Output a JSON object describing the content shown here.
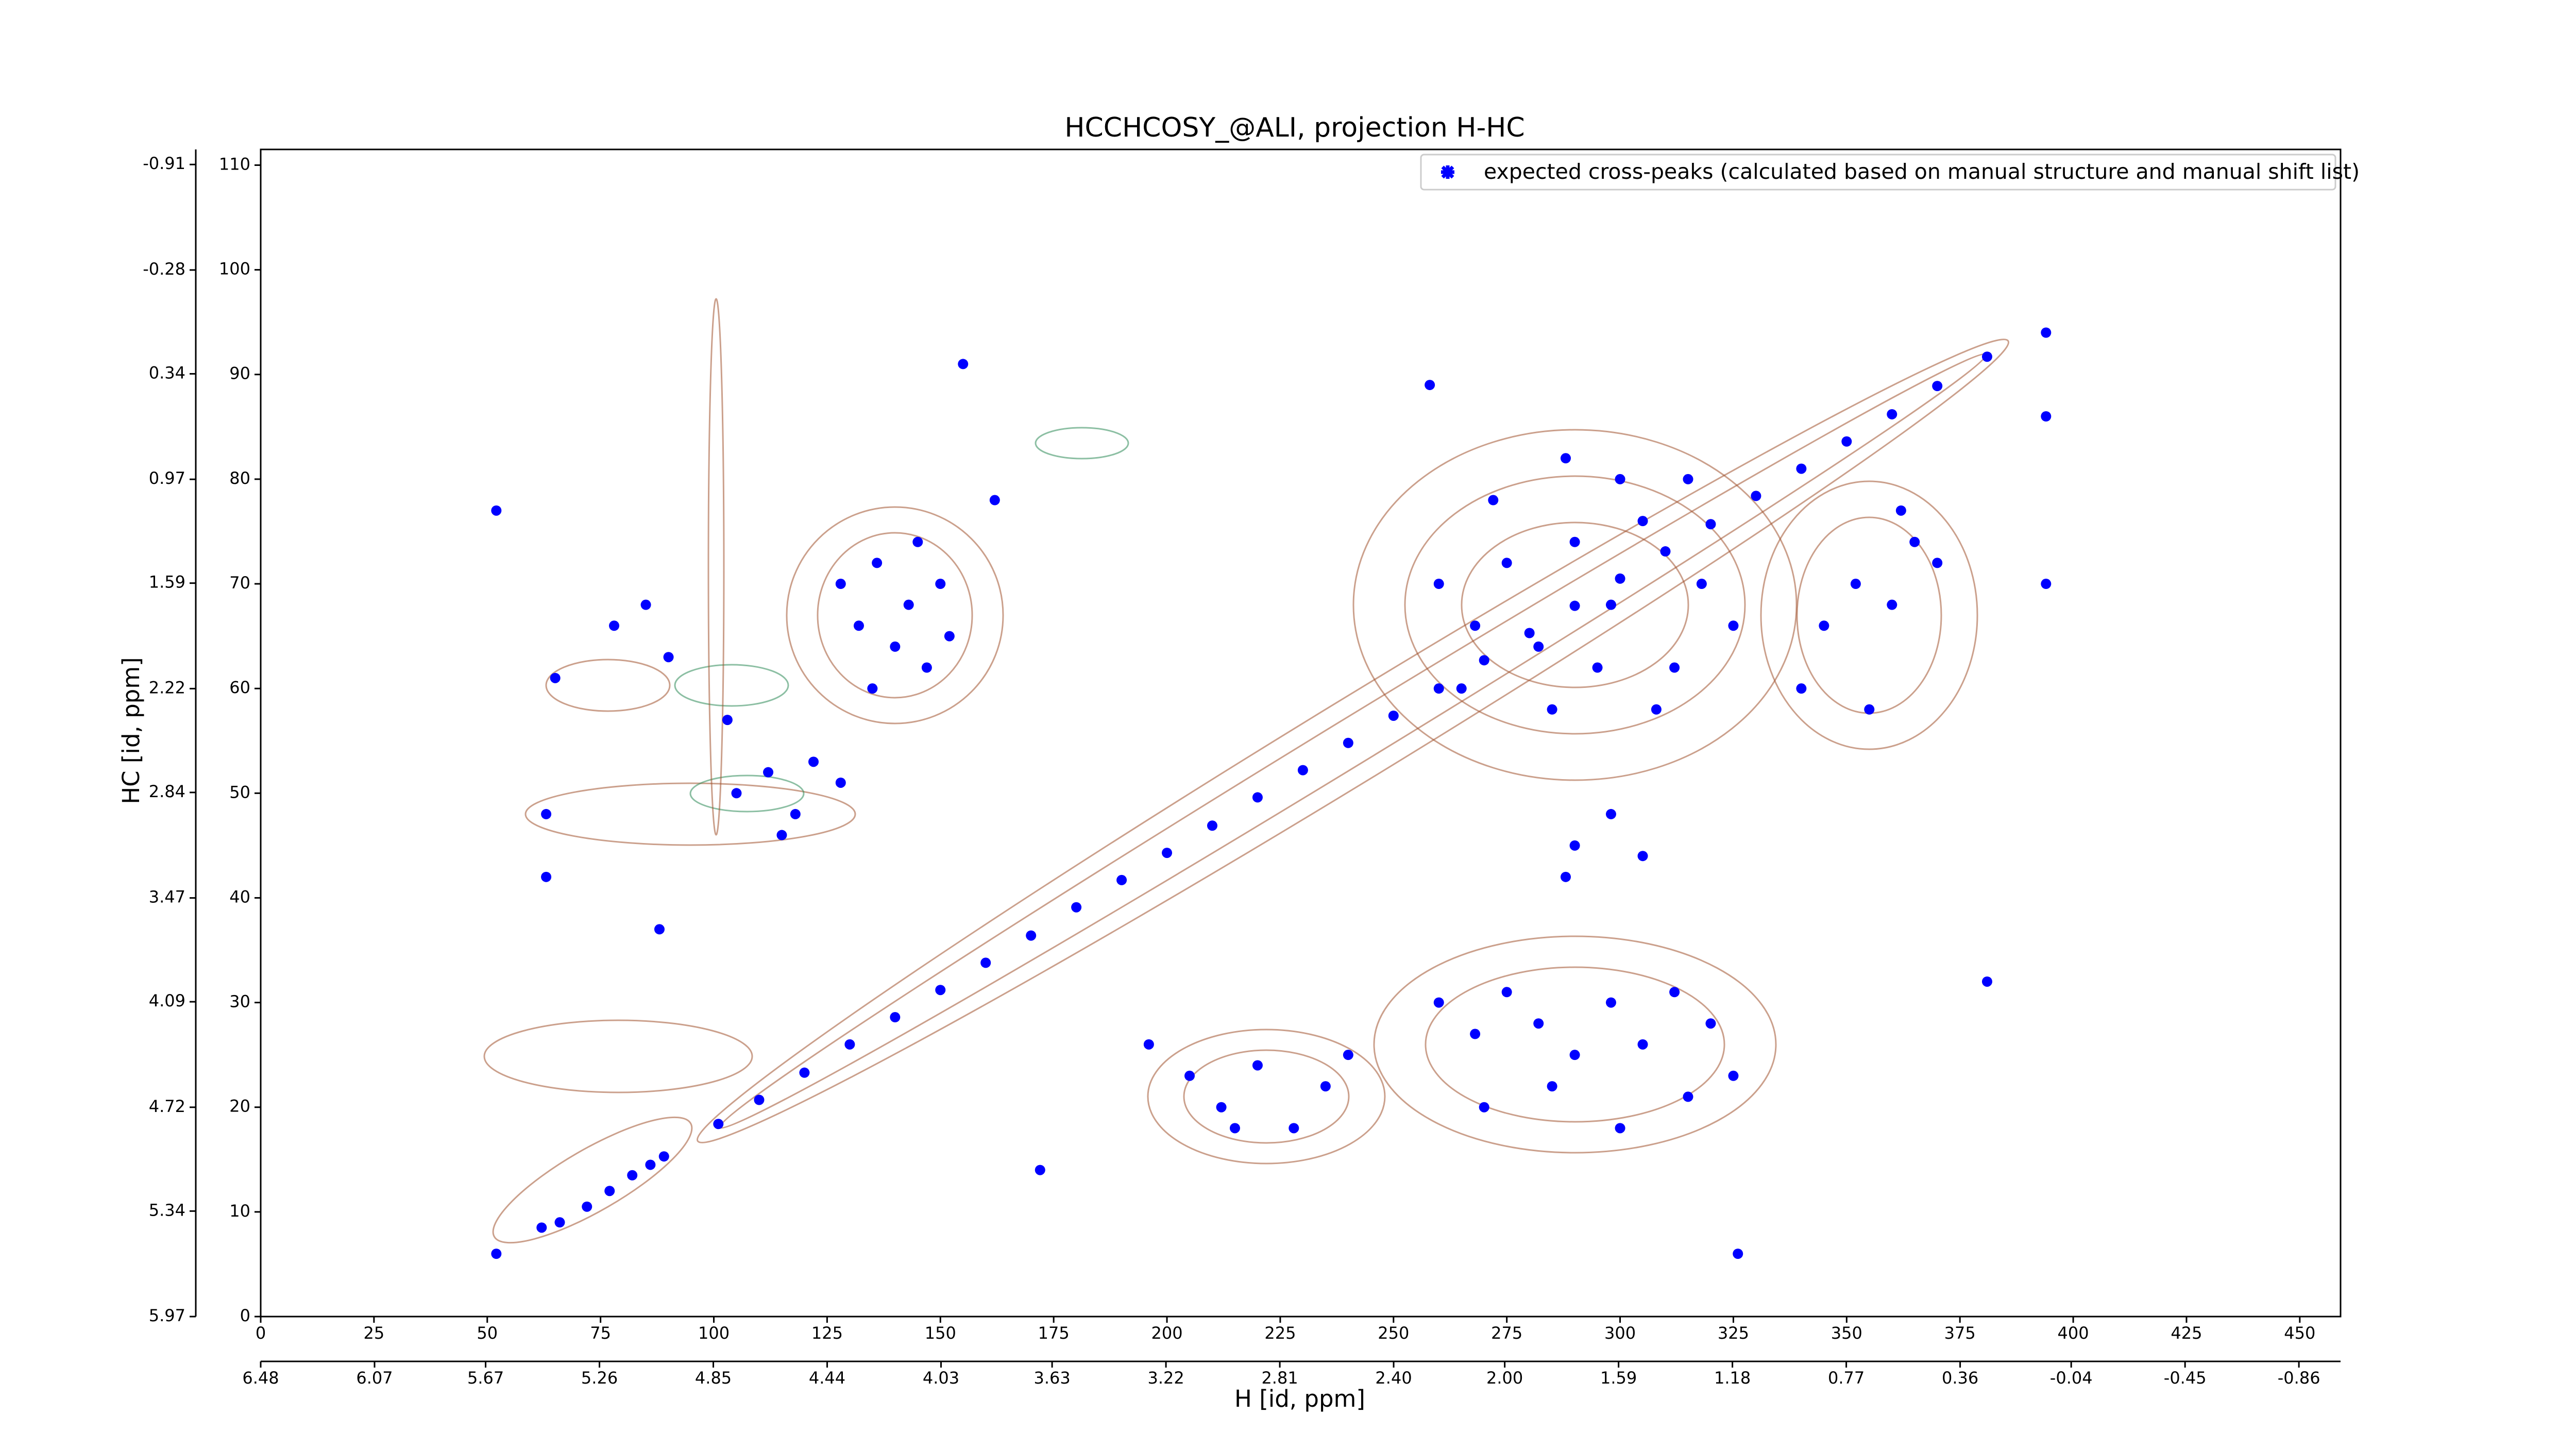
{
  "chart_data": {
    "type": "scatter",
    "title": "HCCHCOSY_@ALI, projection H-HC",
    "xlabel": "H [id, ppm]",
    "ylabel": "HC [id, ppm]",
    "xlim": [
      0,
      459
    ],
    "ylim": [
      0,
      111.5
    ],
    "xticks": [
      0,
      25,
      50,
      75,
      100,
      125,
      150,
      175,
      200,
      225,
      250,
      275,
      300,
      325,
      350,
      375,
      400,
      425,
      450
    ],
    "yticks": [
      0,
      10,
      20,
      30,
      40,
      50,
      60,
      70,
      80,
      90,
      100,
      110
    ],
    "x2lim": [
      6.48,
      -1.01
    ],
    "x2ticks": [
      6.48,
      6.07,
      5.67,
      5.26,
      4.85,
      4.44,
      4.03,
      3.63,
      3.22,
      2.81,
      {
        "value": 2.4,
        "label": "2.40"
      },
      {
        "value": 2.0,
        "label": "2.00"
      },
      1.59,
      1.18,
      0.77,
      0.36,
      -0.04,
      -0.45,
      -0.86
    ],
    "y2lim": [
      5.97,
      -1.0
    ],
    "y2ticks": [
      5.97,
      5.34,
      4.72,
      4.09,
      3.47,
      2.84,
      2.22,
      1.59,
      0.97,
      0.34,
      -0.28,
      -0.91
    ],
    "legend": "upper right",
    "x": [
      101,
      110,
      120,
      130,
      140,
      150,
      160,
      170,
      180,
      190,
      200,
      210,
      220,
      230,
      240,
      250,
      260,
      270,
      280,
      290,
      300,
      310,
      320,
      330,
      340,
      350,
      360,
      370,
      381,
      52,
      62,
      66,
      72,
      77,
      82,
      86,
      89,
      128,
      132,
      136,
      140,
      143,
      147,
      150,
      152,
      135,
      145,
      52,
      78,
      85,
      90,
      65,
      63,
      63,
      88,
      103,
      105,
      112,
      118,
      122,
      128,
      115,
      205,
      212,
      220,
      228,
      235,
      240,
      215,
      260,
      268,
      275,
      282,
      290,
      298,
      305,
      312,
      318,
      325,
      265,
      285,
      295,
      308,
      272,
      300,
      315,
      288,
      260,
      268,
      275,
      282,
      290,
      298,
      305,
      312,
      320,
      325,
      270,
      285,
      300,
      315,
      290,
      298,
      305,
      288,
      345,
      352,
      360,
      365,
      340,
      355,
      362,
      370,
      394,
      394,
      394,
      381,
      155,
      162,
      258,
      196,
      172,
      326
    ],
    "series": [
      {
        "name": "expected cross-peaks (calculated based on manual structure and manual shift list)",
        "color": "#0000ff",
        "values": [
          18.4,
          20.7,
          23.3,
          26,
          28.6,
          31.2,
          33.8,
          36.4,
          39.1,
          41.7,
          44.3,
          46.9,
          49.6,
          52.2,
          54.8,
          57.4,
          60,
          62.7,
          65.3,
          67.9,
          70.5,
          73.1,
          75.7,
          78.4,
          81,
          83.6,
          86.2,
          88.9,
          91.7,
          6,
          8.5,
          9,
          10.5,
          12,
          13.5,
          14.5,
          15.3,
          70,
          66,
          72,
          64,
          68,
          62,
          70,
          65,
          60,
          74,
          77,
          66,
          68,
          63,
          61,
          48,
          42,
          37,
          57,
          50,
          52,
          48,
          53,
          51,
          46,
          23,
          20,
          24,
          18,
          22,
          25,
          18,
          70,
          66,
          72,
          64,
          74,
          68,
          76,
          62,
          70,
          66,
          60,
          58,
          62,
          58,
          78,
          80,
          80,
          82,
          30,
          27,
          31,
          28,
          25,
          30,
          26,
          31,
          28,
          23,
          20,
          22,
          18,
          21,
          45,
          48,
          44,
          42,
          66,
          70,
          68,
          74,
          60,
          58,
          77,
          72,
          94,
          86,
          70,
          32,
          91,
          78,
          89,
          26,
          14,
          6
        ]
      }
    ]
  }
}
